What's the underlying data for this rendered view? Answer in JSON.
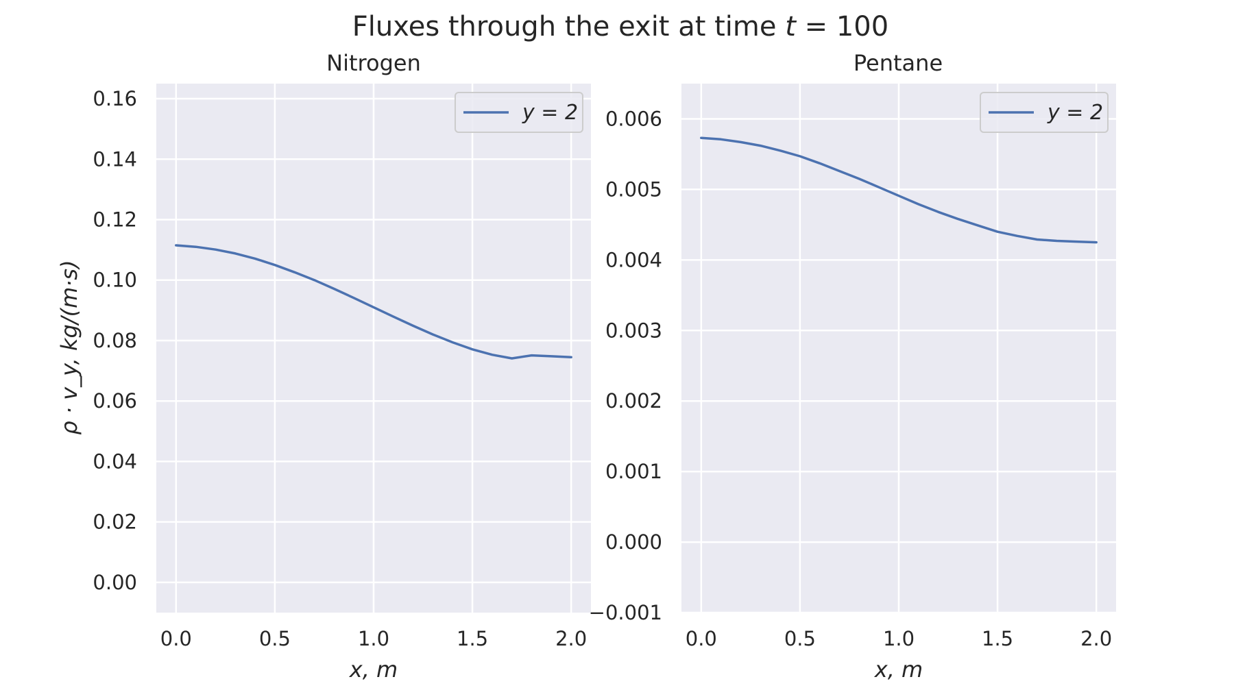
{
  "figure": {
    "title": "Fluxes through the exit at time t = 100"
  },
  "chart_data": [
    {
      "type": "line",
      "title": "Nitrogen",
      "xlabel": "x, m",
      "ylabel": "ρ · v_y, kg/(m·s)",
      "xlim": [
        -0.1,
        2.1
      ],
      "ylim": [
        -0.01,
        0.165
      ],
      "xticks": [
        "0.0",
        "0.5",
        "1.0",
        "1.5",
        "2.0"
      ],
      "yticks": [
        "0.00",
        "0.02",
        "0.04",
        "0.06",
        "0.08",
        "0.10",
        "0.12",
        "0.14",
        "0.16"
      ],
      "legend": "top-right",
      "grid": true,
      "series": [
        {
          "name": "y = 2",
          "color": "#4c72b0",
          "x": [
            0.0,
            0.1,
            0.2,
            0.3,
            0.4,
            0.5,
            0.6,
            0.7,
            0.8,
            0.9,
            1.0,
            1.1,
            1.2,
            1.3,
            1.4,
            1.5,
            1.6,
            1.7,
            1.8,
            1.9,
            2.0
          ],
          "y": [
            0.1115,
            0.111,
            0.1101,
            0.1088,
            0.1071,
            0.105,
            0.1026,
            0.1,
            0.0971,
            0.0941,
            0.091,
            0.0879,
            0.0849,
            0.082,
            0.0794,
            0.0771,
            0.0753,
            0.0741,
            0.0751,
            0.0748,
            0.0745
          ]
        }
      ]
    },
    {
      "type": "line",
      "title": "Pentane",
      "xlabel": "x, m",
      "ylabel": "",
      "xlim": [
        -0.1,
        2.1
      ],
      "ylim": [
        -0.001,
        0.0065
      ],
      "xticks": [
        "0.0",
        "0.5",
        "1.0",
        "1.5",
        "2.0"
      ],
      "yticks": [
        "−0.001",
        "0.000",
        "0.001",
        "0.002",
        "0.003",
        "0.004",
        "0.005",
        "0.006"
      ],
      "legend": "top-right",
      "grid": true,
      "series": [
        {
          "name": "y = 2",
          "color": "#4c72b0",
          "x": [
            0.0,
            0.1,
            0.2,
            0.3,
            0.4,
            0.5,
            0.6,
            0.7,
            0.8,
            0.9,
            1.0,
            1.1,
            1.2,
            1.3,
            1.4,
            1.5,
            1.6,
            1.7,
            1.8,
            1.9,
            2.0
          ],
          "y": [
            0.00573,
            0.00571,
            0.00567,
            0.00562,
            0.00555,
            0.00547,
            0.00537,
            0.00526,
            0.00515,
            0.00503,
            0.00491,
            0.00479,
            0.00468,
            0.00458,
            0.00449,
            0.0044,
            0.00434,
            0.00429,
            0.00427,
            0.00426,
            0.00425
          ]
        }
      ]
    }
  ]
}
